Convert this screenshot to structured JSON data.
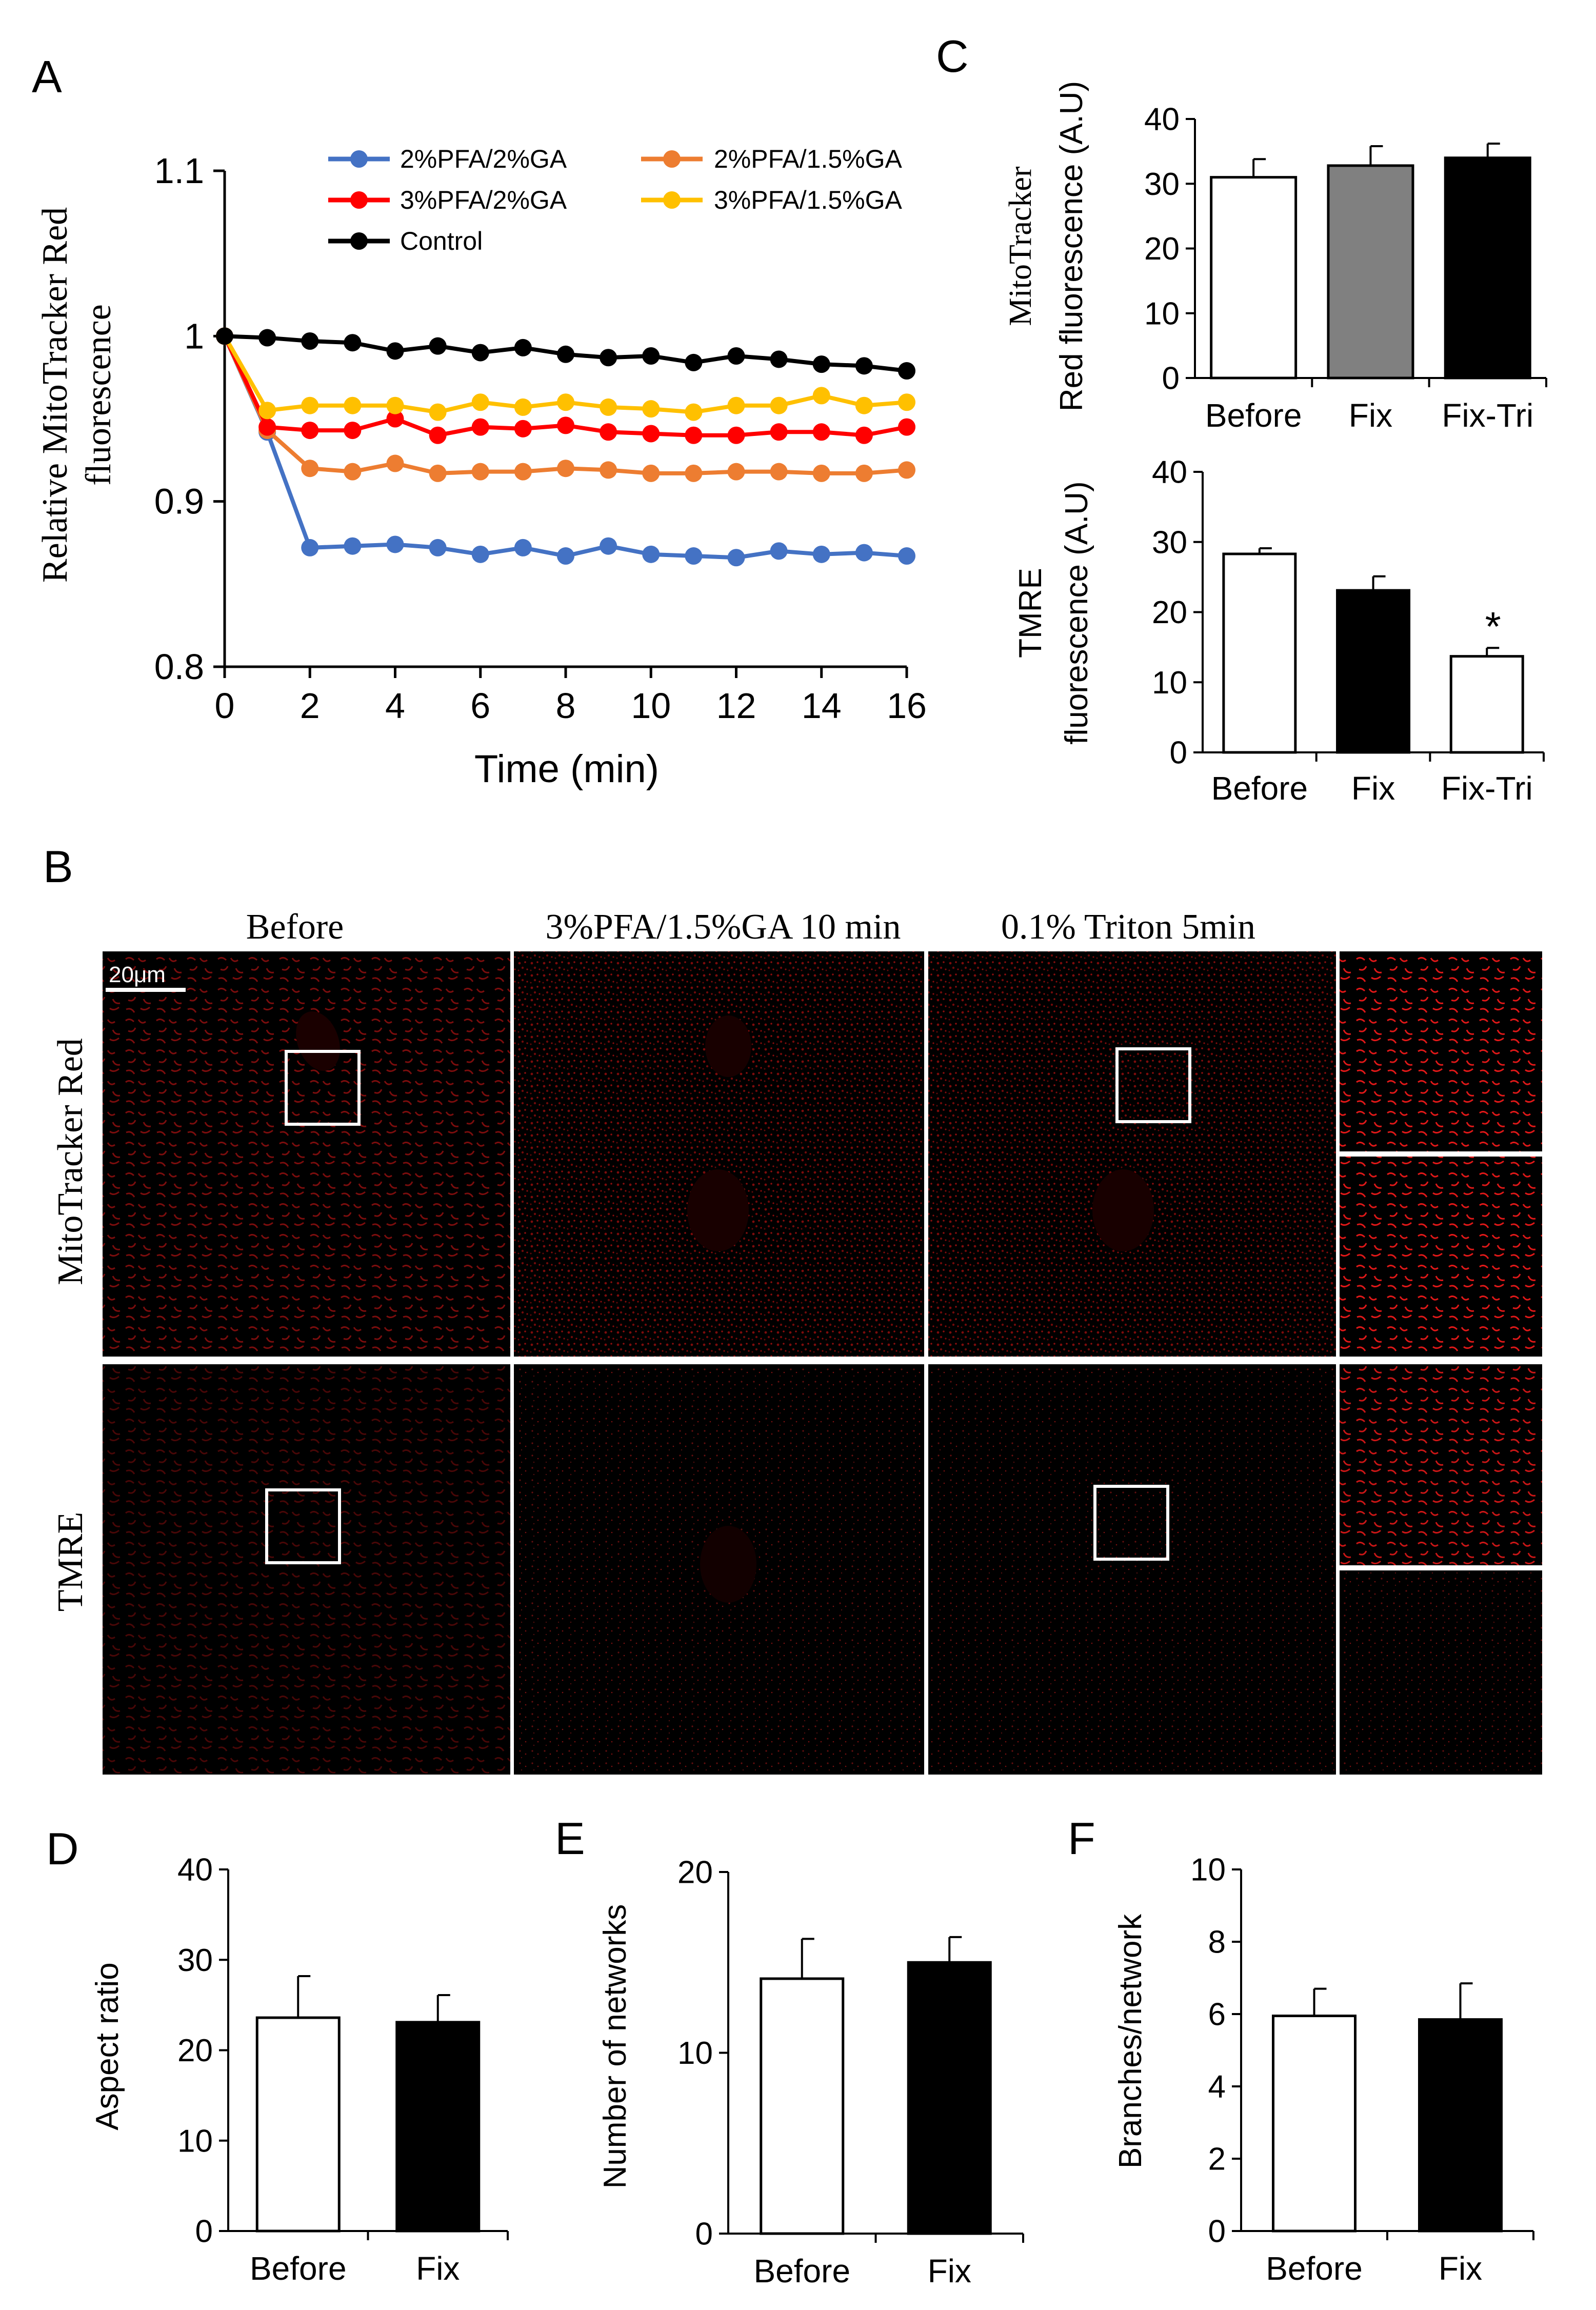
{
  "panel_letters": {
    "a": "A",
    "b": "B",
    "c": "C",
    "d": "D",
    "e": "E",
    "f": "F"
  },
  "colors": {
    "pfa2_ga2": "#4472C4",
    "pfa2_ga15": "#ED7D31",
    "pfa3_ga2": "#FF0000",
    "pfa3_ga15": "#FFC000",
    "control": "#000000",
    "bar_white": "#FFFFFF",
    "bar_gray": "#808080",
    "bar_black": "#000000",
    "micro_red": "#E01818"
  },
  "chart_data": [
    {
      "id": "A",
      "type": "line",
      "xlabel": "Time (min)",
      "ylabel_lines": [
        "Relative MitoTracker Red",
        "fluorescence"
      ],
      "x": [
        0,
        1,
        2,
        3,
        4,
        5,
        6,
        7,
        8,
        9,
        10,
        11,
        12,
        13,
        14,
        15,
        16
      ],
      "xticks": [
        "0",
        "2",
        "4",
        "6",
        "8",
        "10",
        "12",
        "14",
        "16"
      ],
      "yticks": [
        "0.8",
        "0.9",
        "1",
        "1.1"
      ],
      "xlim": [
        0,
        16
      ],
      "ylim": [
        0.8,
        1.1
      ],
      "legend_position": "top",
      "series": [
        {
          "name": "2%PFA/2%GA",
          "color_key": "pfa2_ga2",
          "values": [
            1.0,
            0.942,
            0.872,
            0.873,
            0.874,
            0.872,
            0.868,
            0.872,
            0.867,
            0.873,
            0.868,
            0.867,
            0.866,
            0.87,
            0.868,
            0.869,
            0.867
          ]
        },
        {
          "name": "2%PFA/1.5%GA",
          "color_key": "pfa2_ga15",
          "values": [
            1.0,
            0.943,
            0.92,
            0.918,
            0.923,
            0.917,
            0.918,
            0.918,
            0.92,
            0.919,
            0.917,
            0.917,
            0.918,
            0.918,
            0.917,
            0.917,
            0.919
          ]
        },
        {
          "name": "3%PFA/2%GA",
          "color_key": "pfa3_ga2",
          "values": [
            1.0,
            0.945,
            0.943,
            0.943,
            0.95,
            0.94,
            0.945,
            0.944,
            0.946,
            0.942,
            0.941,
            0.94,
            0.94,
            0.942,
            0.942,
            0.94,
            0.945
          ]
        },
        {
          "name": "3%PFA/1.5%GA",
          "color_key": "pfa3_ga15",
          "values": [
            1.0,
            0.955,
            0.958,
            0.958,
            0.958,
            0.954,
            0.96,
            0.957,
            0.96,
            0.957,
            0.956,
            0.954,
            0.958,
            0.958,
            0.964,
            0.958,
            0.96
          ]
        },
        {
          "name": "Control",
          "color_key": "control",
          "values": [
            1.0,
            0.999,
            0.997,
            0.996,
            0.991,
            0.994,
            0.99,
            0.993,
            0.989,
            0.987,
            0.988,
            0.984,
            0.988,
            0.986,
            0.983,
            0.982,
            0.979
          ]
        }
      ]
    },
    {
      "id": "C-top",
      "type": "bar",
      "categories": [
        "Before",
        "Fix",
        "Fix-Tri"
      ],
      "values": [
        31,
        32.8,
        34
      ],
      "errors": [
        2.8,
        3.0,
        2.2
      ],
      "fills": [
        "bar_white",
        "bar_gray",
        "bar_black"
      ],
      "ylabel_serif": "MitoTracker",
      "ylabel_sans": "Red fluorescence (A.U)",
      "yticks": [
        "0",
        "10",
        "20",
        "30",
        "40"
      ],
      "ylim": [
        0,
        40
      ]
    },
    {
      "id": "C-bottom",
      "type": "bar",
      "categories": [
        "Before",
        "Fix",
        "Fix-Tri"
      ],
      "values": [
        28.3,
        23.1,
        13.7
      ],
      "errors": [
        0.8,
        2.0,
        1.2
      ],
      "fills": [
        "bar_white",
        "bar_black",
        "bar_white"
      ],
      "ylabel_lines": [
        "TMRE",
        "fluorescence (A.U)"
      ],
      "yticks": [
        "0",
        "10",
        "20",
        "30",
        "40"
      ],
      "ylim": [
        0,
        40
      ],
      "annotation": "*"
    },
    {
      "id": "D",
      "type": "bar",
      "categories": [
        "Before",
        "Fix"
      ],
      "values": [
        23.6,
        23.1
      ],
      "errors": [
        4.6,
        3.0
      ],
      "fills": [
        "bar_white",
        "bar_black"
      ],
      "ylabel": "Aspect ratio",
      "yticks": [
        "0",
        "10",
        "20",
        "30",
        "40"
      ],
      "ylim": [
        0,
        40
      ]
    },
    {
      "id": "E",
      "type": "bar",
      "categories": [
        "Before",
        "Fix"
      ],
      "values": [
        14.1,
        15.0
      ],
      "errors": [
        2.2,
        1.4
      ],
      "fills": [
        "bar_white",
        "bar_black"
      ],
      "ylabel": "Number of networks",
      "yticks": [
        "0",
        "10",
        "20"
      ],
      "ylim": [
        0,
        20
      ]
    },
    {
      "id": "F",
      "type": "bar",
      "categories": [
        "Before",
        "Fix"
      ],
      "values": [
        5.95,
        5.85
      ],
      "errors": [
        0.75,
        1.0
      ],
      "fills": [
        "bar_white",
        "bar_black"
      ],
      "ylabel": "Branches/network",
      "yticks": [
        "0",
        "2",
        "4",
        "6",
        "8",
        "10"
      ],
      "ylim": [
        0,
        10
      ]
    }
  ],
  "micrograph": {
    "column_titles": [
      "Before",
      "3%PFA/1.5%GA 10 min",
      "0.1% Triton 5min"
    ],
    "row_labels": [
      "MitoTracker Red",
      "TMRE"
    ],
    "scale_bar": "20μm"
  }
}
